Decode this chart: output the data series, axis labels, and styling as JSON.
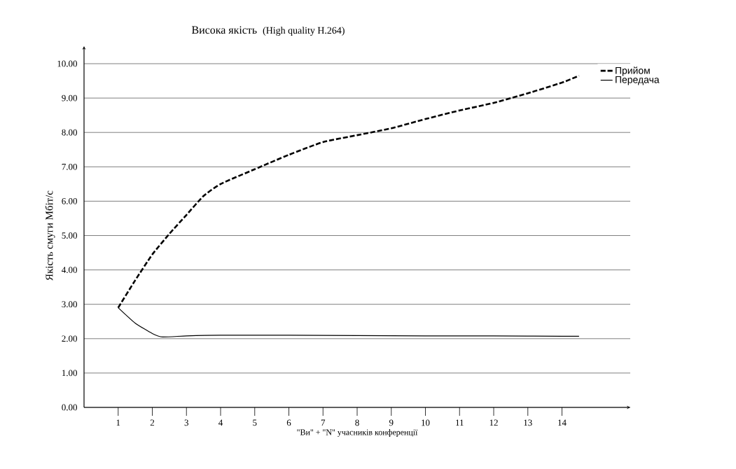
{
  "chart_data": {
    "type": "line",
    "title": "Висока якість",
    "subtitle": "(High quality H.264)",
    "xlabel": "\"Ви\" + \"N\" учасників конференції",
    "ylabel": "Якість смуги Мбіт/с",
    "series": [
      {
        "name": "Прийом",
        "color": "#000000",
        "line_style": "dashed",
        "x": [
          1,
          1.5,
          2,
          2.5,
          3,
          3.5,
          4,
          5,
          6,
          7,
          8,
          9,
          10,
          11,
          12,
          13,
          14,
          14.5
        ],
        "values": [
          2.9,
          3.7,
          4.45,
          5.05,
          5.6,
          6.15,
          6.5,
          6.93,
          7.35,
          7.72,
          7.92,
          8.12,
          8.39,
          8.64,
          8.86,
          9.14,
          9.45,
          9.65
        ]
      },
      {
        "name": "Передача",
        "color": "#000000",
        "line_style": "solid",
        "x": [
          1,
          1.5,
          2,
          2.3,
          3,
          4,
          6,
          8,
          10,
          12,
          14,
          14.5
        ],
        "values": [
          2.9,
          2.45,
          2.15,
          2.05,
          2.08,
          2.1,
          2.1,
          2.09,
          2.08,
          2.08,
          2.07,
          2.07
        ]
      }
    ],
    "xlim": [
      0,
      16
    ],
    "xticks": [
      1,
      2,
      3,
      4,
      5,
      6,
      7,
      8,
      9,
      10,
      11,
      12,
      13,
      14
    ],
    "ylim": [
      0,
      10
    ],
    "yticks": [
      {
        "value": 0,
        "label": "0.00"
      },
      {
        "value": 1,
        "label": "1.00"
      },
      {
        "value": 2,
        "label": "2.00"
      },
      {
        "value": 3,
        "label": "3.00"
      },
      {
        "value": 4,
        "label": "4.00"
      },
      {
        "value": 5,
        "label": "5.00"
      },
      {
        "value": 6,
        "label": "6.00"
      },
      {
        "value": 7,
        "label": "7.00"
      },
      {
        "value": 8,
        "label": "8.00"
      },
      {
        "value": 9,
        "label": "9.00"
      },
      {
        "value": 10,
        "label": "10.00"
      }
    ],
    "grid": "y",
    "legend": "top right",
    "marker": "none"
  }
}
